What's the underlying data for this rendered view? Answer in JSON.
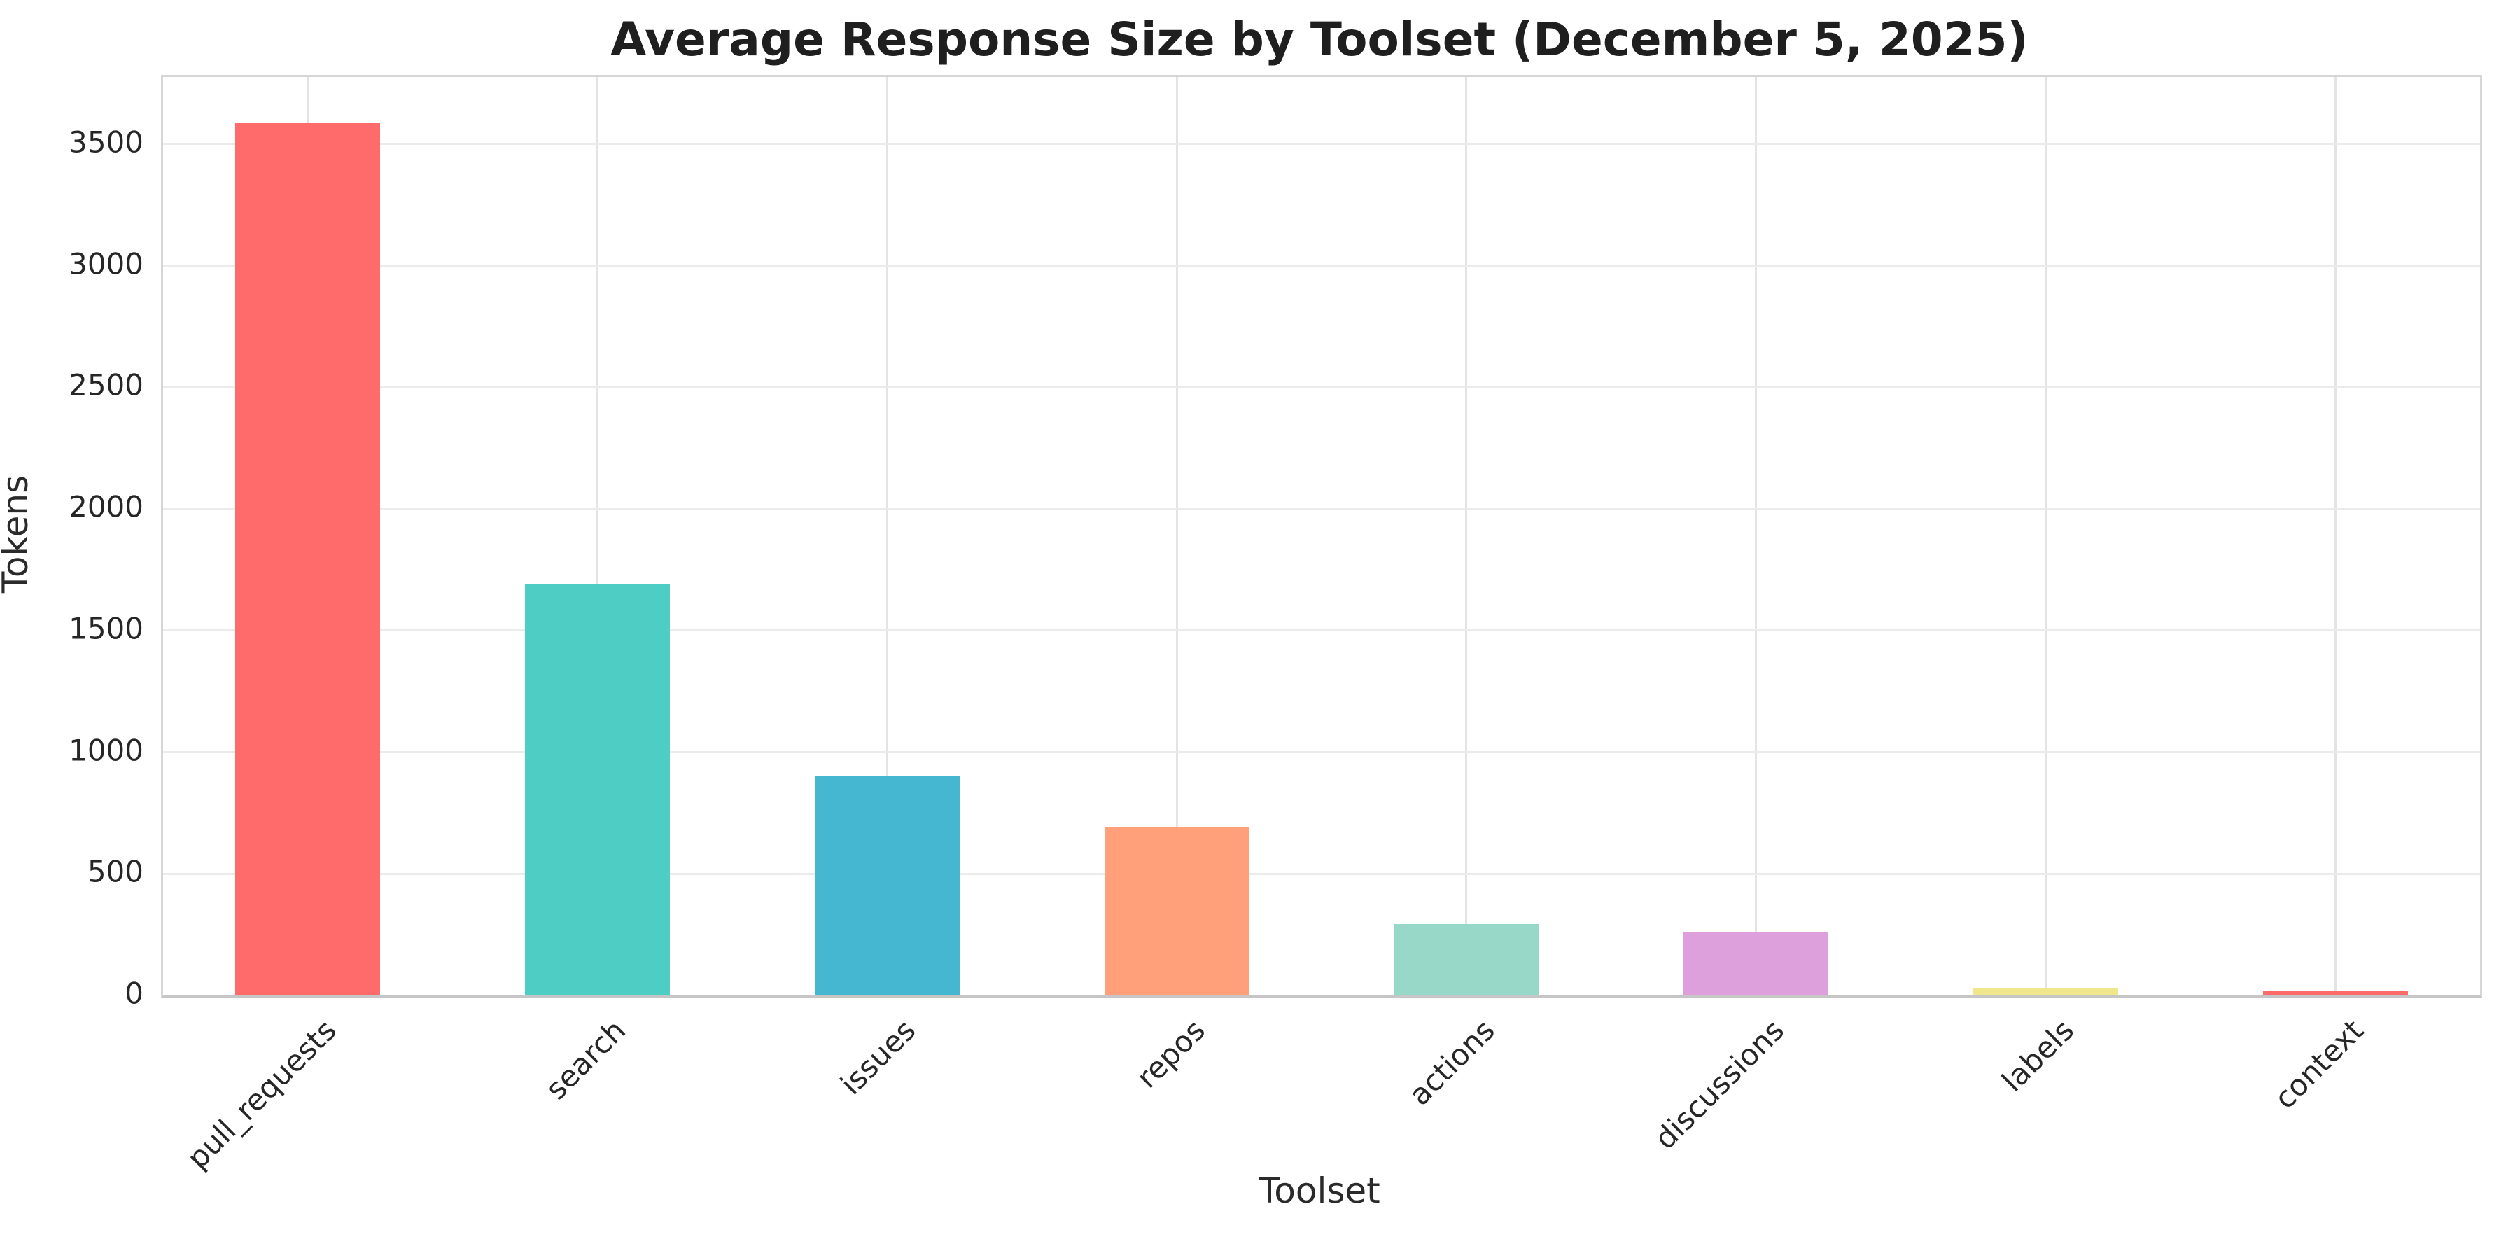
{
  "chart_data": {
    "type": "bar",
    "title": "Average Response Size by Toolset (December 5, 2025)",
    "xlabel": "Toolset",
    "ylabel": "Tokens",
    "categories": [
      "pull_requests",
      "search",
      "issues",
      "repos",
      "actions",
      "discussions",
      "labels",
      "context"
    ],
    "values": [
      3590,
      1690,
      900,
      690,
      295,
      260,
      30,
      20
    ],
    "bar_colors": [
      "#FF6B6B",
      "#4ECDC4",
      "#45B7D1",
      "#FFA07A",
      "#98D8C8",
      "#DDA0DD",
      "#F0E68C",
      "#FF6B6B"
    ],
    "yticks": [
      0,
      500,
      1000,
      1500,
      2000,
      2500,
      3000,
      3500
    ],
    "ylim": [
      0,
      3776
    ],
    "grid": "both",
    "legend": "none",
    "xtick_rotation": 45,
    "bar_width_fraction": 0.5,
    "grid_color": "#ebebeb",
    "spine_color": "#d6d6d6",
    "title_color": "#1f1f1f",
    "tick_label_color": "#262626",
    "axis_label_color": "#2a2a2a",
    "background_color": "#ffffff"
  }
}
